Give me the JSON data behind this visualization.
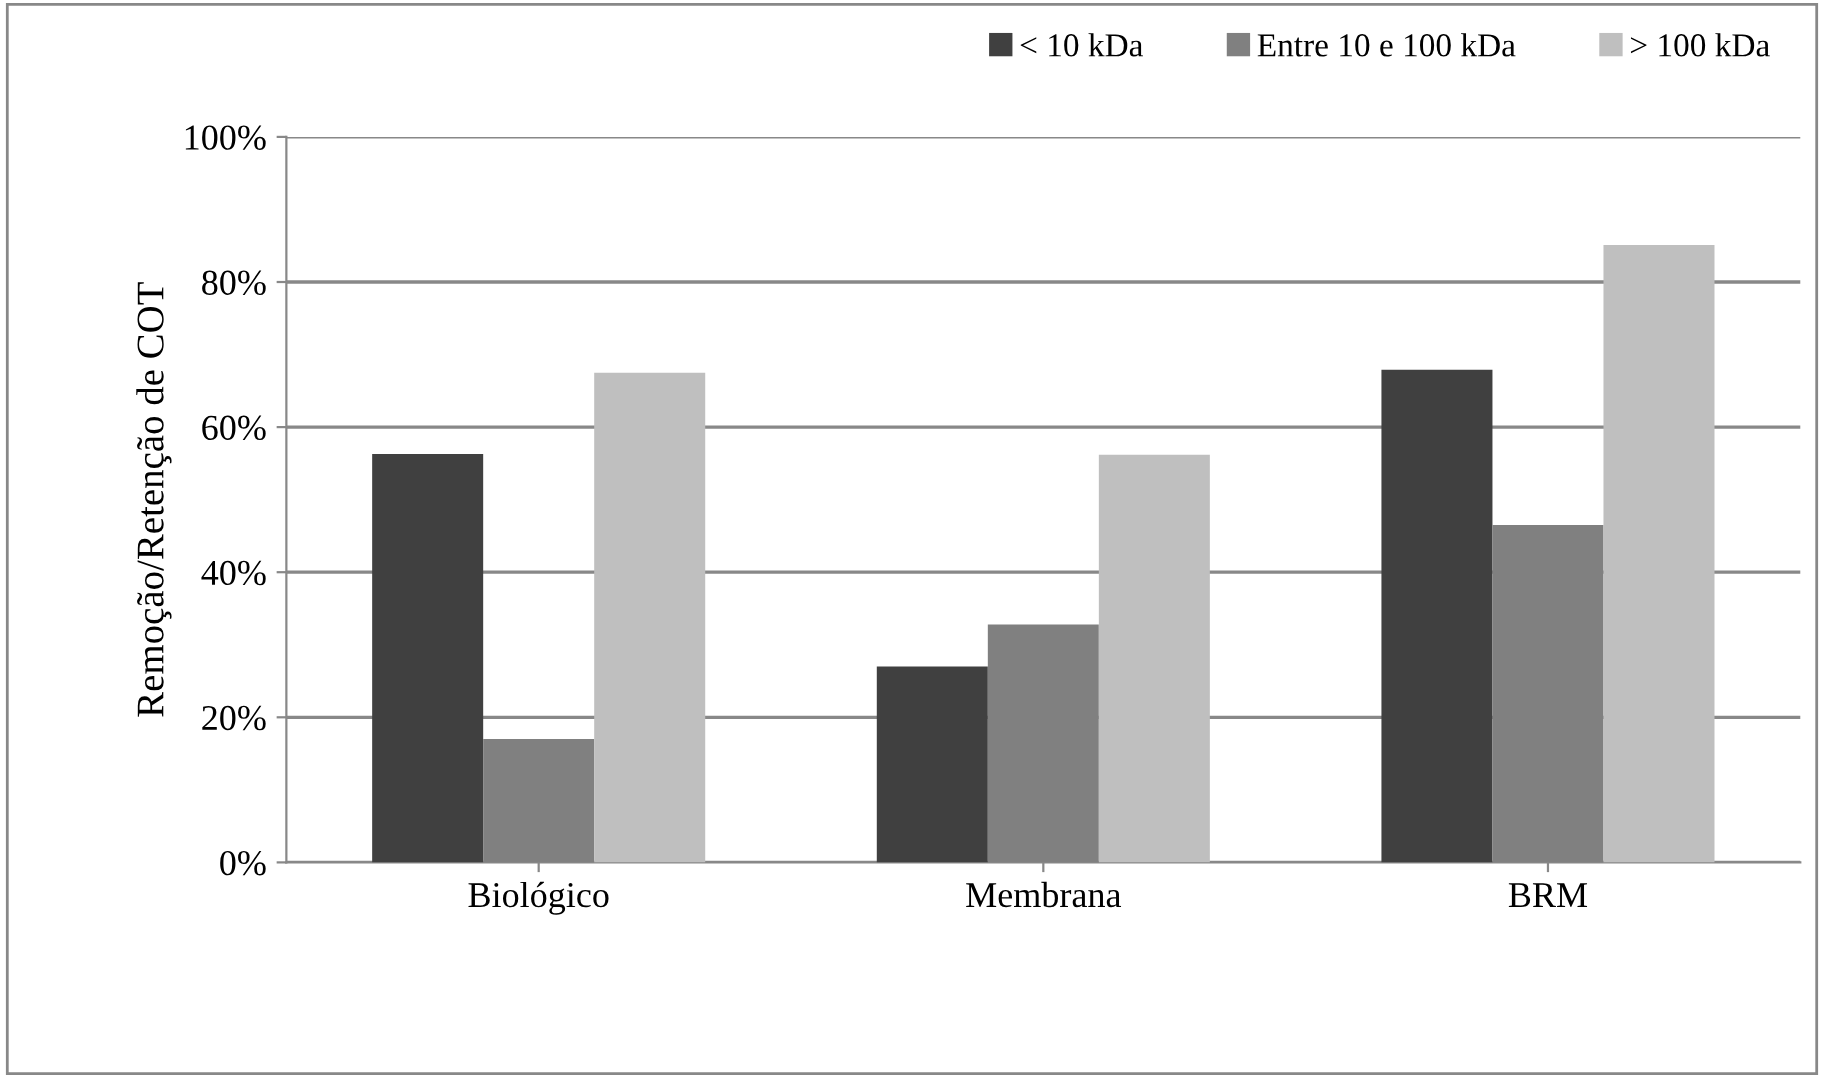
{
  "chart_data": {
    "type": "bar",
    "ylabel": "Remoção/Retenção de COT",
    "categories": [
      "Biológico",
      "Membrana",
      "BRM"
    ],
    "series": [
      {
        "name": "< 10 kDa",
        "color": "#404040",
        "values": [
          56.3,
          27,
          67.9
        ]
      },
      {
        "name": "Entre 10 e 100 kDa",
        "color": "#808080",
        "values": [
          17,
          32.8,
          46.5
        ]
      },
      {
        "name": "> 100 kDa",
        "color": "#bfbfbf",
        "values": [
          67.5,
          56.2,
          85.1
        ]
      }
    ],
    "ylim": [
      0,
      100
    ],
    "yticks": [
      {
        "value": 0,
        "label": "0%"
      },
      {
        "value": 20,
        "label": "20%"
      },
      {
        "value": 40,
        "label": "40%"
      },
      {
        "value": 60,
        "label": "60%"
      },
      {
        "value": 80,
        "label": "80%"
      },
      {
        "value": 100,
        "label": "100%"
      }
    ],
    "grid": "y",
    "legend": "top right"
  }
}
